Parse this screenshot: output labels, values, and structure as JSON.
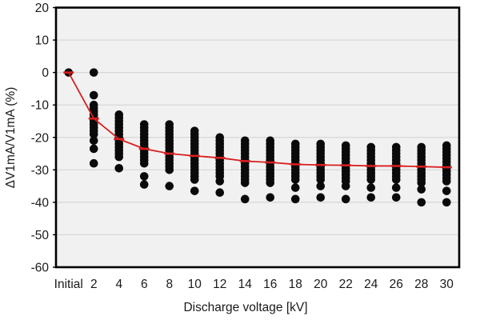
{
  "chart_data": {
    "type": "scatter",
    "title": "",
    "xlabel": "Discharge voltage [kV]",
    "ylabel": "ΔV1mA/V1mA (%)",
    "ylim": [
      -60,
      20
    ],
    "yticks": [
      20,
      10,
      0,
      -10,
      -20,
      -30,
      -40,
      -50,
      -60
    ],
    "categories": [
      "Initial",
      "2",
      "4",
      "6",
      "8",
      "10",
      "12",
      "14",
      "16",
      "18",
      "20",
      "22",
      "24",
      "26",
      "28",
      "30"
    ],
    "grid": true,
    "legend_position": "none",
    "series": [
      {
        "name": "sample-points",
        "type": "scatter",
        "color": "#0a0a0a",
        "points_by_category": [
          [
            0
          ],
          [
            0,
            -7,
            -10,
            -11,
            -12,
            -13,
            -14,
            -15,
            -16,
            -17,
            -18,
            -19,
            -21,
            -23.5,
            -28
          ],
          [
            -13,
            -14,
            -15,
            -16,
            -17,
            -18,
            -19,
            -20,
            -21,
            -22,
            -23,
            -24,
            -25,
            -26,
            -29.5
          ],
          [
            -16,
            -17,
            -18,
            -19,
            -20,
            -21,
            -22,
            -23,
            -24,
            -25,
            -26,
            -27,
            -28,
            -32,
            -34.5
          ],
          [
            -16,
            -17,
            -18,
            -19,
            -20,
            -21,
            -22,
            -23,
            -24,
            -25,
            -26,
            -27,
            -28,
            -29,
            -30,
            -35
          ],
          [
            -18,
            -19,
            -20,
            -21,
            -22,
            -23,
            -24,
            -25,
            -26,
            -27,
            -28,
            -29,
            -30,
            -31,
            -32,
            -33,
            -36.5
          ],
          [
            -20,
            -21,
            -22,
            -23,
            -24,
            -25,
            -26,
            -27,
            -28,
            -29,
            -30,
            -31,
            -32,
            -33.5,
            -37
          ],
          [
            -21,
            -22,
            -23,
            -24,
            -25,
            -26,
            -27,
            -28,
            -29,
            -30,
            -31,
            -32,
            -33,
            -34,
            -39
          ],
          [
            -21,
            -22,
            -23,
            -24,
            -25,
            -26,
            -27,
            -28,
            -29,
            -30,
            -31,
            -32,
            -33,
            -34,
            -38.5
          ],
          [
            -22,
            -23,
            -24,
            -25,
            -26,
            -27,
            -28,
            -29,
            -30,
            -31,
            -32,
            -33,
            -35.5,
            -39
          ],
          [
            -22,
            -23,
            -24,
            -25,
            -26,
            -27,
            -28,
            -29,
            -30,
            -31,
            -32,
            -33,
            -35,
            -38.5
          ],
          [
            -22.5,
            -23.5,
            -24.5,
            -25.5,
            -26.5,
            -27.5,
            -28.5,
            -29.5,
            -30.5,
            -31.5,
            -32.5,
            -33.5,
            -35,
            -39
          ],
          [
            -23,
            -24,
            -25,
            -26,
            -27,
            -28,
            -29,
            -30,
            -31,
            -32,
            -33,
            -35.5,
            -38.5
          ],
          [
            -23,
            -24,
            -25,
            -26,
            -27,
            -28,
            -29,
            -30,
            -31,
            -32,
            -33,
            -35.5,
            -38.5
          ],
          [
            -23,
            -24,
            -25,
            -26,
            -27,
            -28,
            -29,
            -30,
            -31,
            -32,
            -33,
            -34,
            -36,
            -40
          ],
          [
            -22.5,
            -23.5,
            -24.5,
            -25.5,
            -26.5,
            -27.5,
            -28.5,
            -29.5,
            -30.5,
            -31.5,
            -32.5,
            -33.5,
            -36.5,
            -40
          ]
        ]
      },
      {
        "name": "mean-line",
        "type": "line",
        "color": "#d81e1e",
        "marker": "dash",
        "values": [
          0,
          -14.2,
          -20.5,
          -23.5,
          -25,
          -25.7,
          -26.3,
          -27.3,
          -27.7,
          -28.3,
          -28.5,
          -28.6,
          -28.8,
          -28.8,
          -29,
          -29.2
        ]
      }
    ]
  },
  "style": {
    "plot_bg": "#f1f1f1",
    "grid_color": "#d6d6d6",
    "border_color": "#000000",
    "dot_color": "#0a0a0a",
    "line_color": "#d81e1e"
  }
}
